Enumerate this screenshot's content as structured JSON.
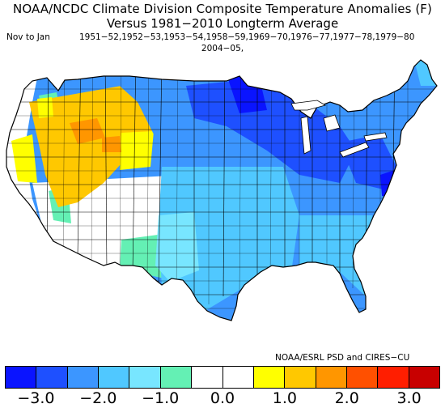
{
  "title_line1": "NOAA/NCDC Climate Division Composite Temperature Anomalies (F)",
  "title_line2": "Versus 1981−2010 Longterm Average",
  "season_label": "Nov to Jan",
  "seasons_line1": "1951−52,1952−53,1953−54,1958−59,1969−70,1976−77,1977−78,1979−80",
  "seasons_line2": "2004−05,",
  "credit": "NOAA/ESRL PSD and CIRES−CU",
  "colors": {
    "land_default": "#ffffff",
    "border": "#000000"
  },
  "colorbar": {
    "colors": [
      "#0a14ff",
      "#1e50ff",
      "#3c96ff",
      "#50c8ff",
      "#78e6ff",
      "#64f0b4",
      "#ffffff",
      "#ffffff",
      "#ffff00",
      "#ffc800",
      "#ff9600",
      "#ff5000",
      "#ff1e00",
      "#c80000"
    ],
    "tick_labels": [
      "−3.0",
      "−2.0",
      "−1.0",
      "0.0",
      "1.0",
      "2.0",
      "3.0"
    ]
  },
  "map_data": {
    "type": "choropleth",
    "region": "Contiguous United States climate divisions",
    "variable": "Temperature anomaly (F)",
    "range": [
      -3.5,
      3.5
    ],
    "pattern": {
      "west_coast": "near 0 to +1.0",
      "great_basin_and_northern_rockies": "+1.0 to +2.0",
      "southwest": "0 to -0.5",
      "plains_and_south": "-1.0 to -1.5",
      "upper_midwest_and_great_lakes": "-2.0 to -3.0",
      "northeast": "-1.5 to -2.0"
    }
  }
}
